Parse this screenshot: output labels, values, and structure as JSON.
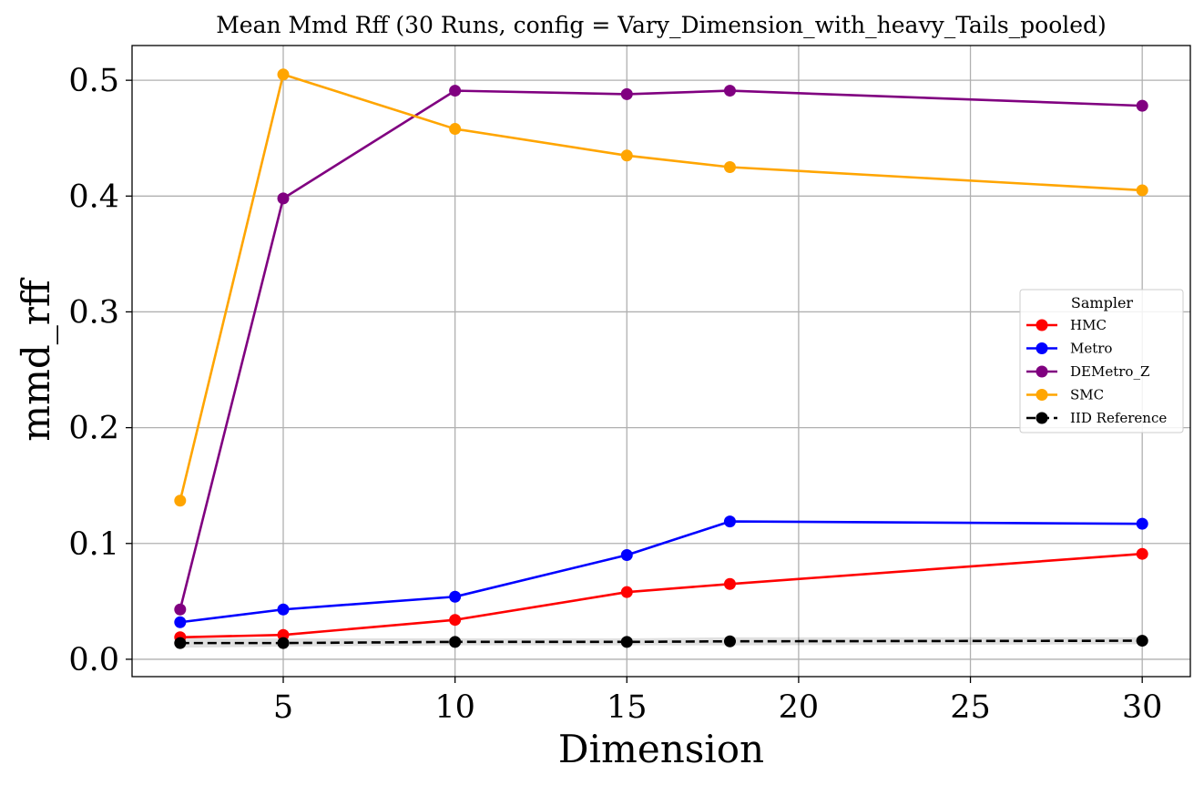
{
  "chart_data": {
    "type": "line",
    "title": "Mean Mmd Rff (30 Runs, config = Vary_Dimension_with_heavy_Tails_pooled)",
    "xlabel": "Dimension",
    "ylabel": "mmd_rff",
    "xlim": [
      0.6,
      31.4
    ],
    "ylim": [
      -0.015,
      0.53
    ],
    "x_ticks": [
      5,
      10,
      15,
      20,
      25,
      30
    ],
    "y_ticks": [
      0.0,
      0.1,
      0.2,
      0.3,
      0.4,
      0.5
    ],
    "x_tick_labels": [
      "5",
      "10",
      "15",
      "20",
      "25",
      "30"
    ],
    "y_tick_labels": [
      "0.0",
      "0.1",
      "0.2",
      "0.3",
      "0.4",
      "0.5"
    ],
    "grid": true,
    "legend": {
      "title": "Sampler",
      "placement": "center-right"
    },
    "x": [
      2,
      5,
      10,
      15,
      18,
      30
    ],
    "series": [
      {
        "name": "HMC",
        "color": "#ff0000",
        "linestyle": "solid",
        "values": [
          0.019,
          0.021,
          0.034,
          0.058,
          0.065,
          0.091
        ]
      },
      {
        "name": "Metro",
        "color": "#0000ff",
        "linestyle": "solid",
        "values": [
          0.032,
          0.043,
          0.054,
          0.09,
          0.119,
          0.117
        ]
      },
      {
        "name": "DEMetro_Z",
        "color": "#800080",
        "linestyle": "solid",
        "values": [
          0.043,
          0.398,
          0.491,
          0.488,
          0.491,
          0.478
        ]
      },
      {
        "name": "SMC",
        "color": "#ffa500",
        "linestyle": "solid",
        "values": [
          0.137,
          0.505,
          0.458,
          0.435,
          0.425,
          0.405
        ]
      },
      {
        "name": "IID Reference",
        "color": "#000000",
        "linestyle": "dashed",
        "values": [
          0.014,
          0.014,
          0.015,
          0.015,
          0.0155,
          0.016
        ],
        "band": [
          [
            0.01,
            0.018
          ],
          [
            0.011,
            0.018
          ],
          [
            0.012,
            0.018
          ],
          [
            0.012,
            0.018
          ],
          [
            0.012,
            0.019
          ],
          [
            0.013,
            0.019
          ]
        ]
      }
    ]
  }
}
